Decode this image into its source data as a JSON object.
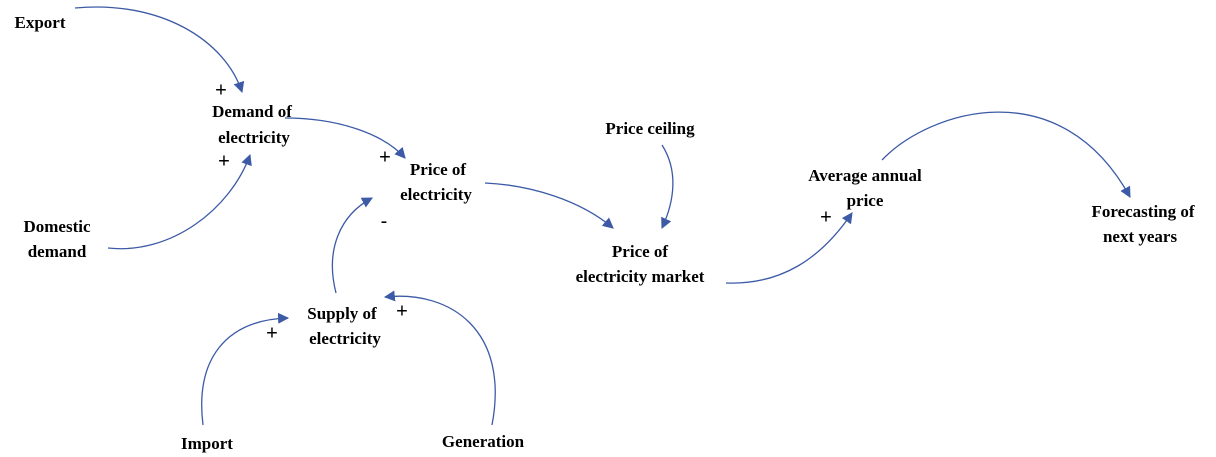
{
  "nodes": [
    {
      "lines": [
        "Export"
      ]
    },
    {
      "lines": [
        "Demand of",
        "electricity"
      ]
    },
    {
      "lines": [
        "Domestic",
        "demand"
      ]
    },
    {
      "lines": [
        "Price of",
        "electricity"
      ]
    },
    {
      "lines": [
        "Price ceiling"
      ]
    },
    {
      "lines": [
        "Price of",
        "electricity market"
      ]
    },
    {
      "lines": [
        "Average annual",
        "price"
      ]
    },
    {
      "lines": [
        "Forecasting of",
        "next years"
      ]
    },
    {
      "lines": [
        "Supply of",
        "electricity"
      ]
    },
    {
      "lines": [
        "Import"
      ]
    },
    {
      "lines": [
        "Generation"
      ]
    }
  ],
  "polarities": [
    "+",
    "+",
    "+",
    "-",
    "+",
    "+",
    "+"
  ]
}
